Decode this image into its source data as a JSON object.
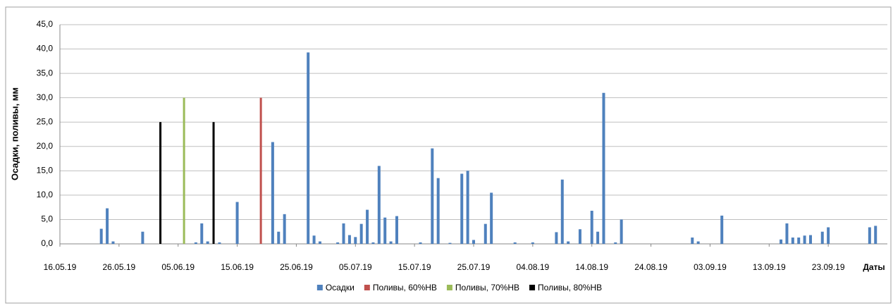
{
  "chart_data": {
    "type": "bar",
    "y_label": "Осадки, поливы, мм",
    "x_label": "Даты",
    "xlim": [
      "16.05.19",
      "03.10.19"
    ],
    "xticks": [
      "16.05.19",
      "26.05.19",
      "05.06.19",
      "15.06.19",
      "25.06.19",
      "05.07.19",
      "15.07.19",
      "25.07.19",
      "04.08.19",
      "14.08.19",
      "24.08.19",
      "03.09.19",
      "13.09.19",
      "23.09.19"
    ],
    "ylim": [
      0,
      45
    ],
    "yticks": [
      {
        "value": 0,
        "label": "0,0"
      },
      {
        "value": 5,
        "label": "5,0"
      },
      {
        "value": 10,
        "label": "10,0"
      },
      {
        "value": 15,
        "label": "15,0"
      },
      {
        "value": 20,
        "label": "20,0"
      },
      {
        "value": 25,
        "label": "25,0"
      },
      {
        "value": 30,
        "label": "30,0"
      },
      {
        "value": 35,
        "label": "35,0"
      },
      {
        "value": 40,
        "label": "40,0"
      },
      {
        "value": 45,
        "label": "45,0"
      }
    ],
    "grid": true,
    "legend": "bottom",
    "series": [
      {
        "name": "Осадки",
        "color": "#4f81bd",
        "x": [
          "23.05.19",
          "24.05.19",
          "25.05.19",
          "30.05.19",
          "08.06.19",
          "09.06.19",
          "10.06.19",
          "12.06.19",
          "15.06.19",
          "21.06.19",
          "22.06.19",
          "23.06.19",
          "27.06.19",
          "28.06.19",
          "29.06.19",
          "02.07.19",
          "03.07.19",
          "04.07.19",
          "05.07.19",
          "06.07.19",
          "07.07.19",
          "08.07.19",
          "09.07.19",
          "10.07.19",
          "11.07.19",
          "12.07.19",
          "16.07.19",
          "18.07.19",
          "19.07.19",
          "21.07.19",
          "23.07.19",
          "24.07.19",
          "25.07.19",
          "27.07.19",
          "28.07.19",
          "01.08.19",
          "04.08.19",
          "08.08.19",
          "09.08.19",
          "10.08.19",
          "12.08.19",
          "14.08.19",
          "15.08.19",
          "16.08.19",
          "18.08.19",
          "19.08.19",
          "31.08.19",
          "01.09.19",
          "05.09.19",
          "15.09.19",
          "16.09.19",
          "17.09.19",
          "18.09.19",
          "19.09.19",
          "20.09.19",
          "22.09.19",
          "23.09.19",
          "30.09.19",
          "01.10.19"
        ],
        "values": [
          3.1,
          7.3,
          0.5,
          2.5,
          0.3,
          4.2,
          0.5,
          0.3,
          8.6,
          20.9,
          2.5,
          6.1,
          39.3,
          1.7,
          0.5,
          0.3,
          4.2,
          1.8,
          1.4,
          4.1,
          7.0,
          0.3,
          16.0,
          5.4,
          0.5,
          5.7,
          0.3,
          19.6,
          13.5,
          0.2,
          14.4,
          15.0,
          0.8,
          4.1,
          10.5,
          0.3,
          0.3,
          2.4,
          13.2,
          0.5,
          3.0,
          6.8,
          2.5,
          31.0,
          0.3,
          5.0,
          1.3,
          0.5,
          5.8,
          0.9,
          4.2,
          1.3,
          1.3,
          1.7,
          1.8,
          2.5,
          3.4,
          3.4,
          3.7
        ]
      },
      {
        "name": "Поливы, 60%НВ",
        "color": "#c0504d",
        "x": [
          "19.06.19"
        ],
        "values": [
          30
        ]
      },
      {
        "name": "Поливы, 70%НВ",
        "color": "#9bbb59",
        "x": [
          "06.06.19"
        ],
        "values": [
          30
        ]
      },
      {
        "name": "Поливы, 80%НВ",
        "color": "#000000",
        "x": [
          "02.06.19",
          "11.06.19"
        ],
        "values": [
          25,
          25
        ]
      }
    ]
  }
}
